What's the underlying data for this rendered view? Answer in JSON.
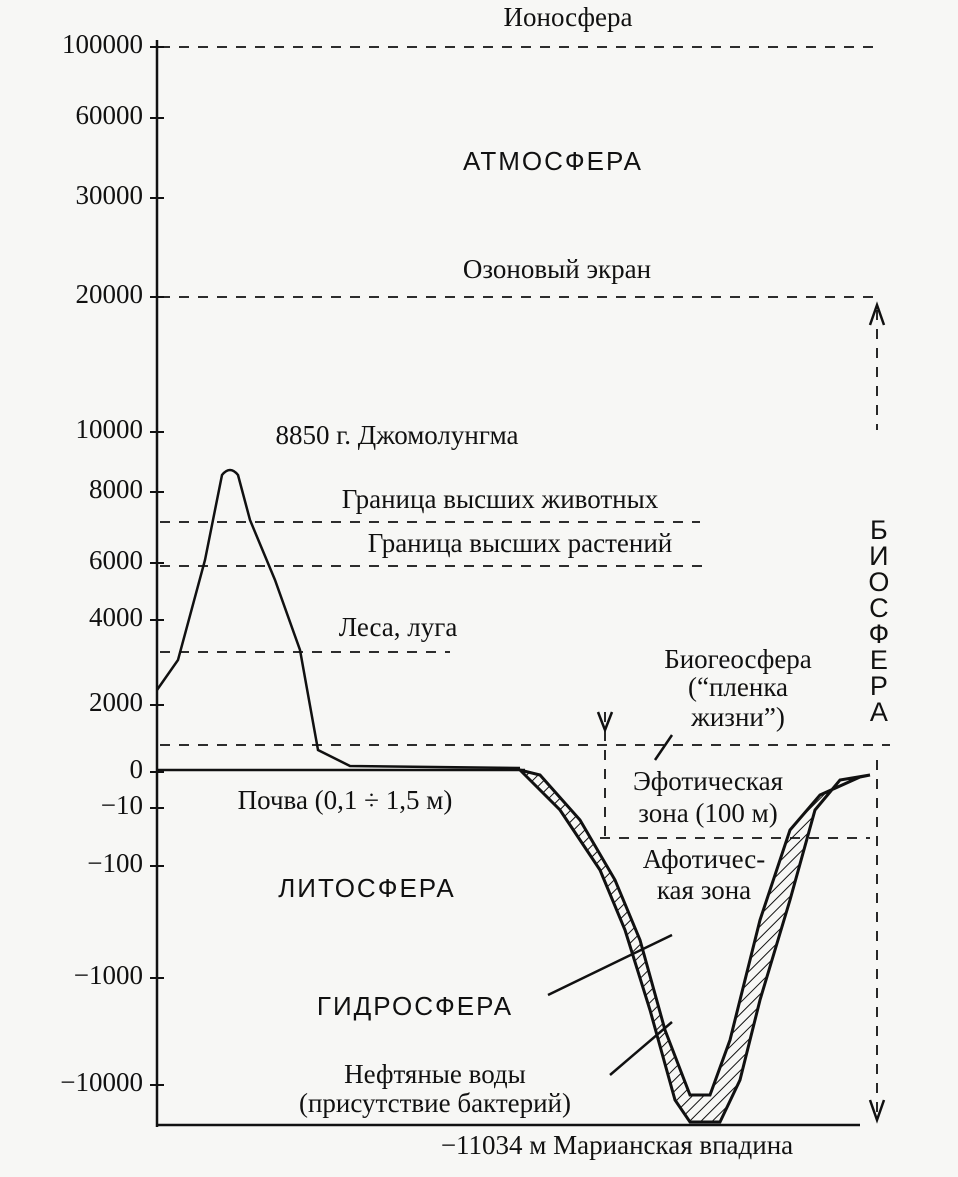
{
  "axis": {
    "ticks": [
      "100000",
      "60000",
      "30000",
      "20000",
      "10000",
      "8000",
      "6000",
      "4000",
      "2000",
      "0",
      "−10",
      "−100",
      "−1000",
      "−10000"
    ]
  },
  "labels": {
    "ionosphere": "Ионосфера",
    "atmosphere": "АТМОСФЕРА",
    "ozone": "Озоновый экран",
    "everest": "8850 г. Джомолунгма",
    "animals": "Граница высших животных",
    "plants": "Граница высших растений",
    "forests": "Леса, луга",
    "biogeosphere": [
      "Биогеосфера",
      "(“пленка",
      "жизни”)"
    ],
    "euphotic": [
      "Эфотическая",
      "зона (100 м)"
    ],
    "soil": "Почва (0,1 ÷ 1,5 м)",
    "aphotic": [
      "Афотичес-",
      "кая зона"
    ],
    "lithosphere": "ЛИТОСФЕРА",
    "hydrosphere": "ГИДРОСФЕРА",
    "oil": [
      "Нефтяные воды",
      "(присутствие бактерий)"
    ],
    "trench": "−11034 м Марианская впадина",
    "biosphere": "БИОСФЕРА"
  }
}
